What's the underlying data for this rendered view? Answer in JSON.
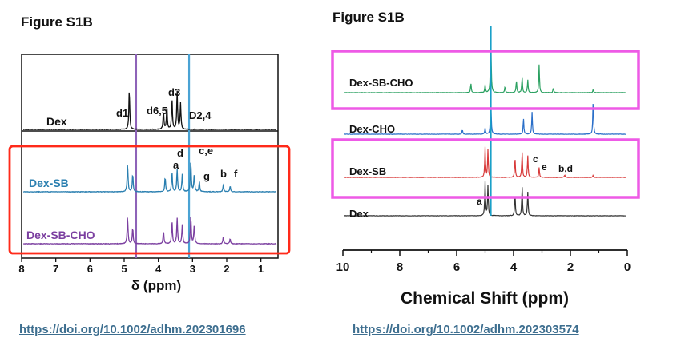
{
  "left": {
    "figure_title": "Figure S1B",
    "doi": "https://doi.org/10.1002/adhm.202301696"
  },
  "right": {
    "figure_title": "Figure S1B",
    "doi": "https://doi.org/10.1002/adhm.202303574"
  },
  "colors": {
    "dex": "#111111",
    "dex_sb_left": "#2a7fb0",
    "dex_sb_cho_left": "#7b3fa0",
    "highlight_left": "#ff2a1a",
    "highlight_right": "#ee5ae6",
    "ref_line_purple": "#8e63b8",
    "ref_line_blue": "#4aa3d4",
    "green": "#2aa060",
    "blue": "#2a6fc9",
    "red": "#d83a3a",
    "gray": "#333333"
  },
  "chart_data": [
    {
      "type": "line",
      "title": "",
      "xlabel": "δ (ppm)",
      "ylabel": "",
      "xlim": [
        8,
        0.5
      ],
      "x_ticks": [
        "8",
        "7",
        "6",
        "5",
        "4",
        "3",
        "2",
        "1"
      ],
      "grid": false,
      "series": [
        {
          "name": "Dex",
          "peaks": [
            {
              "x": 4.85,
              "h": 1.0
            },
            {
              "x": 3.85,
              "h": 0.45
            },
            {
              "x": 3.75,
              "h": 0.55
            },
            {
              "x": 3.6,
              "h": 0.75
            },
            {
              "x": 3.45,
              "h": 0.95
            },
            {
              "x": 3.35,
              "h": 0.65
            }
          ]
        },
        {
          "name": "Dex-SB",
          "peaks": [
            {
              "x": 4.9,
              "h": 0.9
            },
            {
              "x": 4.75,
              "h": 0.55
            },
            {
              "x": 3.8,
              "h": 0.45
            },
            {
              "x": 3.6,
              "h": 0.6
            },
            {
              "x": 3.45,
              "h": 0.7
            },
            {
              "x": 3.3,
              "h": 0.55
            },
            {
              "x": 3.05,
              "h": 0.95
            },
            {
              "x": 2.95,
              "h": 0.55
            },
            {
              "x": 2.8,
              "h": 0.3
            },
            {
              "x": 2.1,
              "h": 0.22
            },
            {
              "x": 1.9,
              "h": 0.18
            }
          ]
        },
        {
          "name": "Dex-SB-CHO",
          "peaks": [
            {
              "x": 4.9,
              "h": 0.85
            },
            {
              "x": 4.75,
              "h": 0.5
            },
            {
              "x": 3.85,
              "h": 0.4
            },
            {
              "x": 3.6,
              "h": 0.7
            },
            {
              "x": 3.45,
              "h": 0.8
            },
            {
              "x": 3.3,
              "h": 0.6
            },
            {
              "x": 3.05,
              "h": 0.85
            },
            {
              "x": 2.95,
              "h": 0.6
            },
            {
              "x": 2.1,
              "h": 0.22
            },
            {
              "x": 1.9,
              "h": 0.16
            }
          ]
        }
      ],
      "series_labels": [
        "Dex",
        "Dex-SB",
        "Dex-SB-CHO"
      ],
      "peak_labels": [
        {
          "text": "d1",
          "series": "Dex"
        },
        {
          "text": "d6,5",
          "series": "Dex"
        },
        {
          "text": "d3",
          "series": "Dex"
        },
        {
          "text": "D2,4",
          "series": "Dex"
        },
        {
          "text": "a",
          "series": "Dex-SB"
        },
        {
          "text": "d",
          "series": "Dex-SB"
        },
        {
          "text": "c,e",
          "series": "Dex-SB"
        },
        {
          "text": "g",
          "series": "Dex-SB"
        },
        {
          "text": "b",
          "series": "Dex-SB"
        },
        {
          "text": "f",
          "series": "Dex-SB"
        }
      ],
      "reference_lines_ppm": [
        4.65,
        3.1
      ]
    },
    {
      "type": "line",
      "title": "",
      "xlabel": "Chemical Shift (ppm)",
      "ylabel": "",
      "xlim": [
        10,
        0
      ],
      "x_ticks": [
        "10",
        "8",
        "6",
        "4",
        "2",
        "0"
      ],
      "grid": false,
      "series": [
        {
          "name": "Dex-SB-CHO",
          "peaks": [
            {
              "x": 4.8,
              "h": 1.0
            },
            {
              "x": 5.5,
              "h": 0.15
            },
            {
              "x": 5.0,
              "h": 0.12
            },
            {
              "x": 4.3,
              "h": 0.1
            },
            {
              "x": 3.9,
              "h": 0.2
            },
            {
              "x": 3.7,
              "h": 0.25
            },
            {
              "x": 3.5,
              "h": 0.2
            },
            {
              "x": 3.1,
              "h": 0.45
            },
            {
              "x": 2.6,
              "h": 0.08
            },
            {
              "x": 1.2,
              "h": 0.05
            }
          ]
        },
        {
          "name": "Dex-CHO",
          "peaks": [
            {
              "x": 4.8,
              "h": 1.0
            },
            {
              "x": 5.8,
              "h": 0.12
            },
            {
              "x": 5.0,
              "h": 0.15
            },
            {
              "x": 3.65,
              "h": 0.4
            },
            {
              "x": 3.35,
              "h": 0.55
            },
            {
              "x": 1.2,
              "h": 0.85
            }
          ]
        },
        {
          "name": "Dex-SB",
          "peaks": [
            {
              "x": 5.0,
              "h": 0.75
            },
            {
              "x": 4.9,
              "h": 0.7
            },
            {
              "x": 3.95,
              "h": 0.5
            },
            {
              "x": 3.7,
              "h": 0.65
            },
            {
              "x": 3.5,
              "h": 0.55
            },
            {
              "x": 3.1,
              "h": 0.25
            },
            {
              "x": 2.2,
              "h": 0.06
            },
            {
              "x": 1.2,
              "h": 0.05
            }
          ]
        },
        {
          "name": "Dex",
          "peaks": [
            {
              "x": 5.0,
              "h": 0.85
            },
            {
              "x": 4.9,
              "h": 0.75
            },
            {
              "x": 3.95,
              "h": 0.55
            },
            {
              "x": 3.7,
              "h": 0.75
            },
            {
              "x": 3.5,
              "h": 0.6
            }
          ]
        }
      ],
      "series_labels": [
        "Dex-SB-CHO",
        "Dex-CHO",
        "Dex-SB",
        "Dex"
      ],
      "peak_labels": [
        {
          "text": "a",
          "series": "Dex"
        },
        {
          "text": "c",
          "series": "Dex-SB"
        },
        {
          "text": "e",
          "series": "Dex-SB"
        },
        {
          "text": "b,d",
          "series": "Dex-SB"
        }
      ],
      "reference_lines_ppm": [
        4.8
      ]
    }
  ]
}
